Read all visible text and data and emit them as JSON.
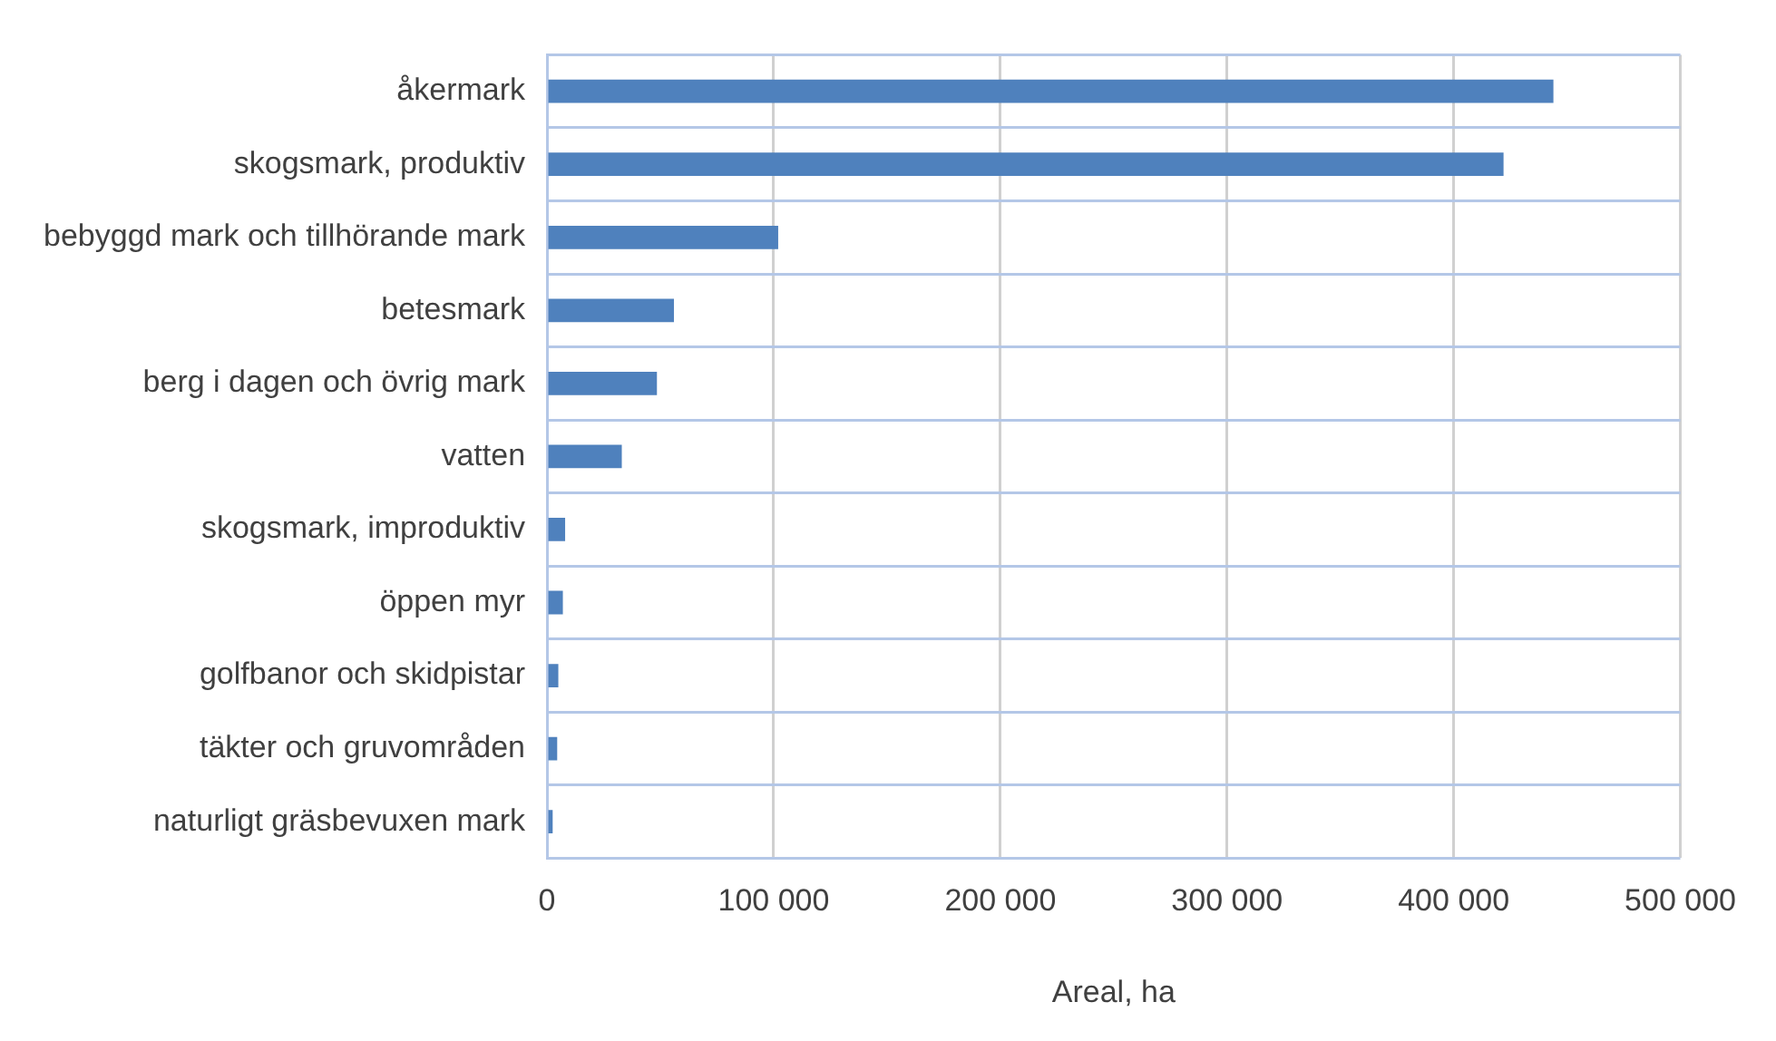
{
  "chart_data": {
    "type": "bar",
    "orientation": "horizontal",
    "xlabel": "Areal, ha",
    "categories": [
      "åkermark",
      "skogsmark, produktiv",
      "bebyggd mark och tillhörande mark",
      "betesmark",
      "berg i dagen och övrig mark",
      "vatten",
      "skogsmark, improduktiv",
      "öppen myr",
      "golfbanor och skidpistar",
      "täkter och gruvområden",
      "naturligt gräsbevuxen mark"
    ],
    "values": [
      444000,
      422000,
      102000,
      56000,
      48500,
      33000,
      8000,
      7000,
      5000,
      4500,
      2500
    ],
    "color": "#4f81bd",
    "xlim": [
      0,
      500000
    ],
    "xticks": [
      {
        "value": 0,
        "label": "0"
      },
      {
        "value": 100000,
        "label": "100 000"
      },
      {
        "value": 200000,
        "label": "200 000"
      },
      {
        "value": 300000,
        "label": "300 000"
      },
      {
        "value": 400000,
        "label": "400 000"
      },
      {
        "value": 500000,
        "label": "500 000"
      }
    ],
    "grid": true,
    "legend": false
  }
}
